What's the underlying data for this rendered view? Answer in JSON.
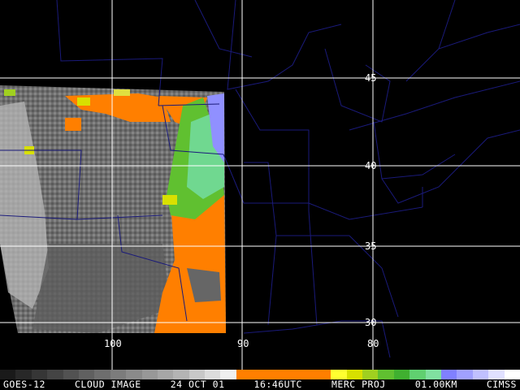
{
  "caption": {
    "satellite": "GOES-12",
    "product": "CLOUD IMAGE",
    "date": "24 OCT 01",
    "time": "16:46UTC",
    "projection": "MERC PROJ",
    "resolution": "01.00KM",
    "source": "CIMSS"
  },
  "grid": {
    "latitudes": [
      "45",
      "40",
      "35",
      "30"
    ],
    "longitudes": [
      "100",
      "90",
      "80"
    ]
  },
  "colors": {
    "grid": "#ffffff",
    "boundaries": "#1a1a7a",
    "cloud_gray": "#7a7a7a",
    "cloud_orange": "#ff7f00",
    "cloud_yellow": "#d8e000",
    "cloud_green": "#60c030",
    "cloud_lightgreen": "#70d890",
    "cloud_blue": "#9090ff"
  },
  "colorbar": [
    "#1a1a1a",
    "#282828",
    "#363636",
    "#444444",
    "#525252",
    "#606060",
    "#6e6e6e",
    "#7c7c7c",
    "#8a8a8a",
    "#989898",
    "#a6a6a6",
    "#b4b4b4",
    "#c8c8c8",
    "#dcdcdc",
    "#f0f0f0",
    "#ff7f00",
    "#ff7f00",
    "#ff7f00",
    "#ff7f00",
    "#ff7f00",
    "#ff7f00",
    "#ffff30",
    "#d8e000",
    "#a0d020",
    "#60c030",
    "#40b030",
    "#60d070",
    "#80e0a0",
    "#8080ff",
    "#a0a0ff",
    "#c0c0ff",
    "#e0e0ff",
    "#ffffff"
  ]
}
